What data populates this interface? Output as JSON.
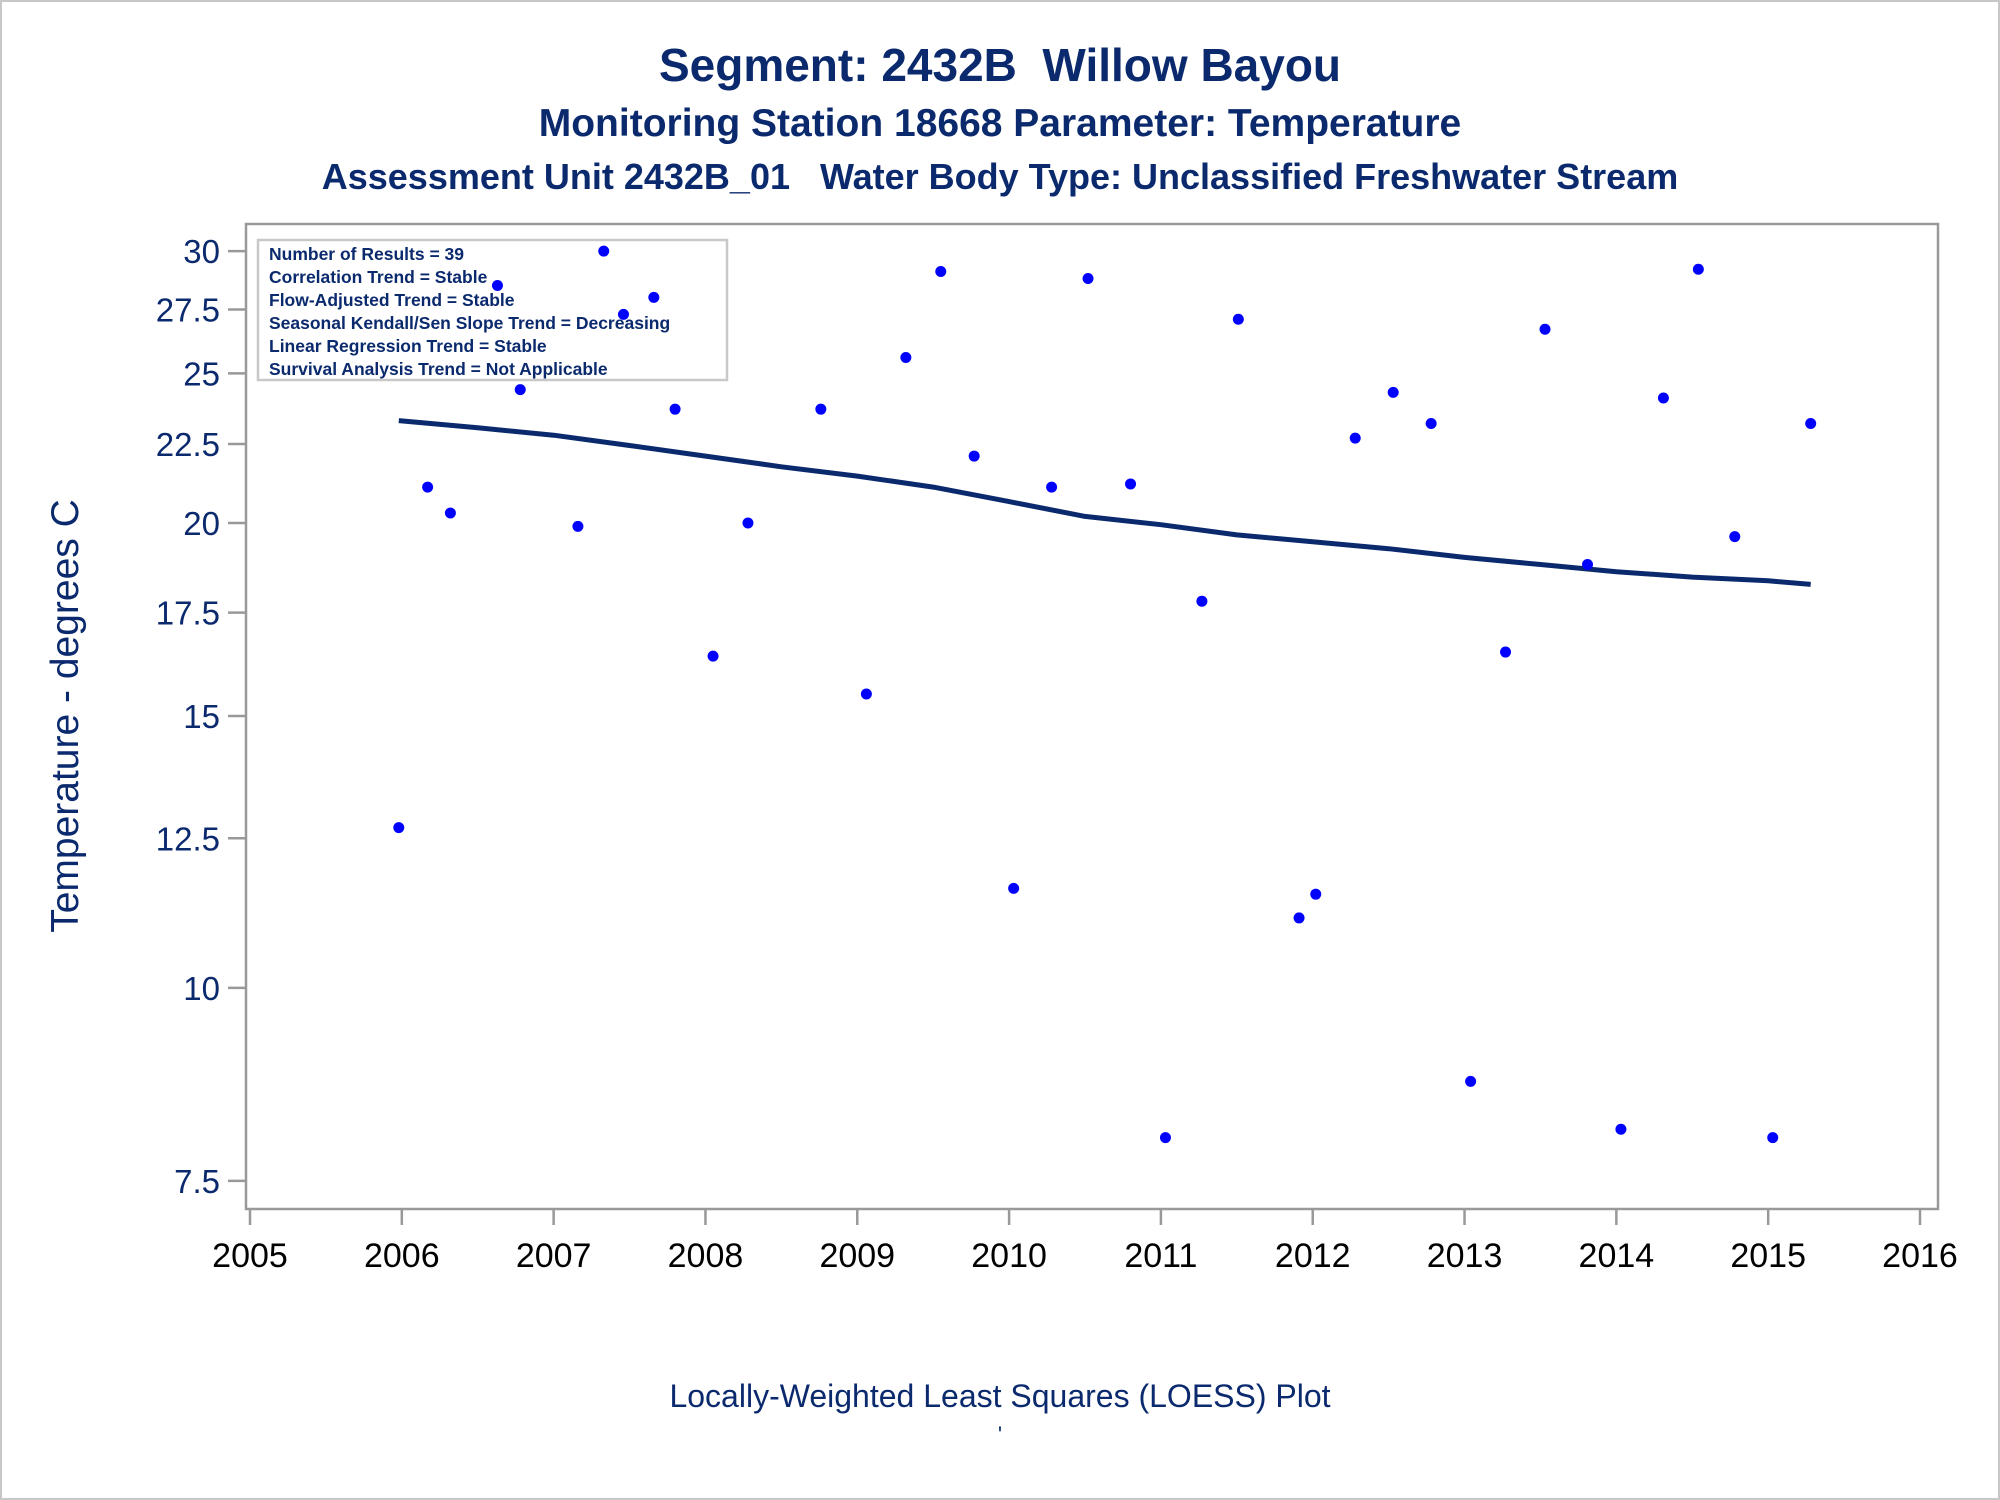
{
  "chart_data": {
    "type": "scatter",
    "title": "Segment: 2432B  Willow Bayou",
    "subtitle_1": "Monitoring Station 18668 Parameter: Temperature",
    "subtitle_2": "Assessment Unit 2432B_01   Water Body Type: Unclassified Freshwater Stream",
    "ylabel": "Temperature - degrees C",
    "footnote": "Locally-Weighted Least Squares (LOESS) Plot",
    "footnote_mark": "'",
    "xlim": [
      2005,
      2016
    ],
    "x_ticks": [
      2005,
      2006,
      2007,
      2008,
      2009,
      2010,
      2011,
      2012,
      2013,
      2014,
      2015,
      2016
    ],
    "x_tick_labels": [
      "2005",
      "2006",
      "2007",
      "2008",
      "2009",
      "2010",
      "2011",
      "2012",
      "2013",
      "2014",
      "2015",
      "2016"
    ],
    "y_scale": "log",
    "ylim": [
      7.3,
      30.5
    ],
    "y_ticks": [
      7.5,
      10,
      12.5,
      15,
      17.5,
      20,
      22.5,
      25,
      27.5,
      30
    ],
    "y_tick_labels": [
      "7.5",
      "10",
      "12.5",
      "15",
      "17.5",
      "20",
      "22.5",
      "25",
      "27.5",
      "30"
    ],
    "grid": false,
    "legend": {
      "placement": "top-left",
      "lines": [
        "Number of Results = 39",
        "Correlation Trend = Stable",
        "Flow-Adjusted Trend = Stable",
        "Seasonal Kendall/Sen Slope Trend = Decreasing",
        "Linear Regression Trend = Stable",
        "Survival Analysis Trend = Not Applicable"
      ]
    },
    "colors": {
      "points": "#0000ff",
      "loess": "#0b2a6e",
      "text": "#0b2a6e",
      "axis": "#999999"
    },
    "points": [
      {
        "x": 2005.98,
        "y": 12.7
      },
      {
        "x": 2006.17,
        "y": 21.1
      },
      {
        "x": 2006.32,
        "y": 20.3
      },
      {
        "x": 2006.63,
        "y": 28.5
      },
      {
        "x": 2006.78,
        "y": 24.4
      },
      {
        "x": 2007.16,
        "y": 19.9
      },
      {
        "x": 2007.33,
        "y": 30.0
      },
      {
        "x": 2007.46,
        "y": 27.3
      },
      {
        "x": 2007.66,
        "y": 28.0
      },
      {
        "x": 2007.8,
        "y": 23.7
      },
      {
        "x": 2008.05,
        "y": 16.4
      },
      {
        "x": 2008.28,
        "y": 20.0
      },
      {
        "x": 2008.76,
        "y": 23.7
      },
      {
        "x": 2009.06,
        "y": 15.5
      },
      {
        "x": 2009.32,
        "y": 25.6
      },
      {
        "x": 2009.55,
        "y": 29.1
      },
      {
        "x": 2009.77,
        "y": 22.1
      },
      {
        "x": 2010.03,
        "y": 11.6
      },
      {
        "x": 2010.28,
        "y": 21.1
      },
      {
        "x": 2010.52,
        "y": 28.8
      },
      {
        "x": 2010.8,
        "y": 21.2
      },
      {
        "x": 2011.03,
        "y": 8.0
      },
      {
        "x": 2011.27,
        "y": 17.8
      },
      {
        "x": 2011.51,
        "y": 27.1
      },
      {
        "x": 2011.91,
        "y": 11.1
      },
      {
        "x": 2012.02,
        "y": 11.5
      },
      {
        "x": 2012.28,
        "y": 22.7
      },
      {
        "x": 2012.53,
        "y": 24.3
      },
      {
        "x": 2012.78,
        "y": 23.2
      },
      {
        "x": 2013.04,
        "y": 8.7
      },
      {
        "x": 2013.27,
        "y": 16.5
      },
      {
        "x": 2013.53,
        "y": 26.7
      },
      {
        "x": 2013.81,
        "y": 18.8
      },
      {
        "x": 2014.03,
        "y": 8.1
      },
      {
        "x": 2014.31,
        "y": 24.1
      },
      {
        "x": 2014.54,
        "y": 29.2
      },
      {
        "x": 2014.78,
        "y": 19.6
      },
      {
        "x": 2015.03,
        "y": 8.0
      },
      {
        "x": 2015.28,
        "y": 23.2
      }
    ],
    "loess_line": {
      "x": [
        2005.98,
        2006.5,
        2007.0,
        2007.5,
        2008.0,
        2008.5,
        2009.0,
        2009.5,
        2010.0,
        2010.5,
        2011.0,
        2011.5,
        2012.0,
        2012.5,
        2013.0,
        2013.5,
        2014.0,
        2014.5,
        2015.0,
        2015.28
      ],
      "y": [
        23.3,
        23.05,
        22.8,
        22.45,
        22.1,
        21.75,
        21.45,
        21.1,
        20.65,
        20.2,
        19.95,
        19.65,
        19.45,
        19.25,
        19.0,
        18.8,
        18.6,
        18.45,
        18.35,
        18.25
      ]
    }
  }
}
